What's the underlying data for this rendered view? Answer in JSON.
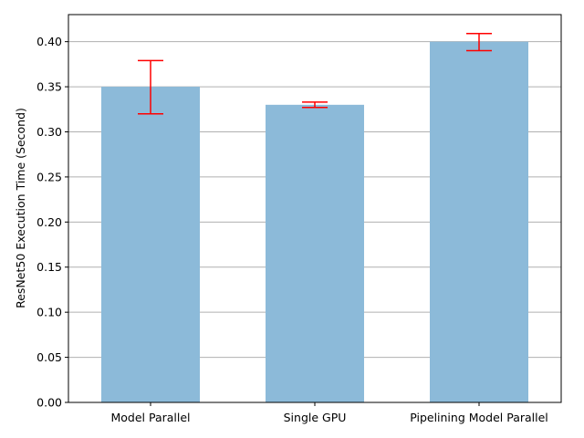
{
  "chart_data": {
    "type": "bar",
    "title": "",
    "xlabel": "",
    "ylabel": "ResNet50 Execution Time (Second)",
    "categories": [
      "Model Parallel",
      "Single GPU",
      "Pipelining Model Parallel"
    ],
    "values": [
      0.35,
      0.33,
      0.4
    ],
    "error_low": [
      0.32,
      0.327,
      0.39
    ],
    "error_high": [
      0.379,
      0.333,
      0.409
    ],
    "ylim": [
      0,
      0.43
    ],
    "yticks": [
      "0.00",
      "0.05",
      "0.10",
      "0.15",
      "0.20",
      "0.25",
      "0.30",
      "0.35",
      "0.40"
    ],
    "grid": "horizontal",
    "colors": {
      "bar": "#8cbad9",
      "error": "#ff0000",
      "grid": "#b0b0b0",
      "axis": "#000000"
    }
  }
}
